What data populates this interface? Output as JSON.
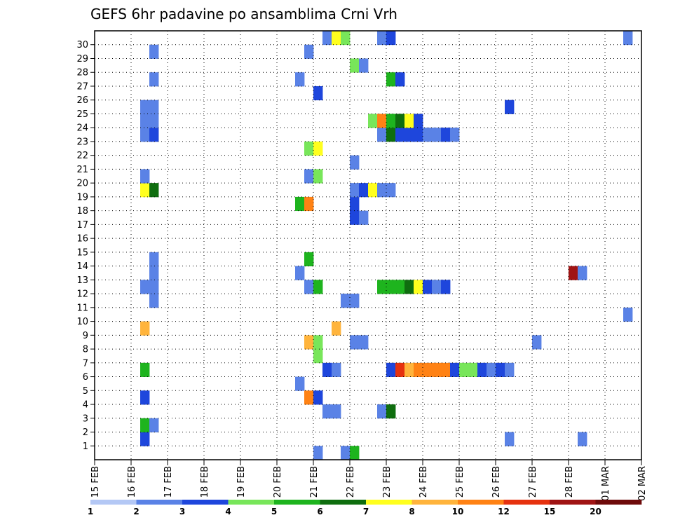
{
  "chart_data": {
    "type": "heatmap",
    "title": "GEFS 6hr padavine po ansamblima Crni Vrh",
    "x_tick_labels": [
      "15 FEB",
      "16 FEB",
      "17 FEB",
      "18 FEB",
      "19 FEB",
      "20 FEB",
      "21 FEB",
      "22 FEB",
      "23 FEB",
      "24 FEB",
      "25 FEB",
      "26 FEB",
      "27 FEB",
      "28 FEB",
      "01 MAR",
      "02 MAR"
    ],
    "y_tick_labels": [
      "1",
      "2",
      "3",
      "4",
      "5",
      "6",
      "7",
      "8",
      "9",
      "10",
      "11",
      "12",
      "13",
      "14",
      "15",
      "16",
      "17",
      "18",
      "19",
      "20",
      "21",
      "22",
      "23",
      "24",
      "25",
      "26",
      "27",
      "28",
      "29",
      "30"
    ],
    "x_step_hours": 6,
    "grid": true,
    "colorbar": {
      "levels": [
        "1",
        "2",
        "3",
        "4",
        "5",
        "6",
        "7",
        "8",
        "10",
        "12",
        "15",
        "20"
      ],
      "colors": [
        "#b4c8f5",
        "#5a82e6",
        "#1e46dc",
        "#78e65a",
        "#1eb41e",
        "#0f6e0f",
        "#ffff1e",
        "#ffb43c",
        "#ff8214",
        "#e6320f",
        "#a01414",
        "#6e0a0a"
      ],
      "placement": "bottom"
    },
    "cells": [
      {
        "d": "16 FEB",
        "h": 6,
        "m": 1,
        "c": 2
      },
      {
        "d": "16 FEB",
        "h": 6,
        "m": 2,
        "c": 4
      },
      {
        "d": "16 FEB",
        "h": 12,
        "m": 2,
        "c": 1
      },
      {
        "d": "16 FEB",
        "h": 6,
        "m": 4,
        "c": 2
      },
      {
        "d": "16 FEB",
        "h": 6,
        "m": 6,
        "c": 4
      },
      {
        "d": "16 FEB",
        "h": 6,
        "m": 9,
        "c": 7
      },
      {
        "d": "16 FEB",
        "h": 12,
        "m": 11,
        "c": 1
      },
      {
        "d": "16 FEB",
        "h": 6,
        "m": 12,
        "c": 1
      },
      {
        "d": "16 FEB",
        "h": 12,
        "m": 12,
        "c": 1
      },
      {
        "d": "16 FEB",
        "h": 12,
        "m": 13,
        "c": 1
      },
      {
        "d": "16 FEB",
        "h": 12,
        "m": 14,
        "c": 1
      },
      {
        "d": "16 FEB",
        "h": 6,
        "m": 19,
        "c": 6
      },
      {
        "d": "16 FEB",
        "h": 12,
        "m": 19,
        "c": 5
      },
      {
        "d": "16 FEB",
        "h": 6,
        "m": 20,
        "c": 1
      },
      {
        "d": "16 FEB",
        "h": 6,
        "m": 23,
        "c": 1
      },
      {
        "d": "16 FEB",
        "h": 12,
        "m": 23,
        "c": 2
      },
      {
        "d": "16 FEB",
        "h": 6,
        "m": 24,
        "c": 1
      },
      {
        "d": "16 FEB",
        "h": 12,
        "m": 24,
        "c": 1
      },
      {
        "d": "16 FEB",
        "h": 6,
        "m": 25,
        "c": 1
      },
      {
        "d": "16 FEB",
        "h": 12,
        "m": 25,
        "c": 1
      },
      {
        "d": "16 FEB",
        "h": 12,
        "m": 27,
        "c": 1
      },
      {
        "d": "16 FEB",
        "h": 12,
        "m": 29,
        "c": 1
      },
      {
        "d": "20 FEB",
        "h": 12,
        "m": 5,
        "c": 1
      },
      {
        "d": "20 FEB",
        "h": 12,
        "m": 13,
        "c": 1
      },
      {
        "d": "20 FEB",
        "h": 12,
        "m": 18,
        "c": 4
      },
      {
        "d": "20 FEB",
        "h": 12,
        "m": 27,
        "c": 1
      },
      {
        "d": "20 FEB",
        "h": 18,
        "m": 4,
        "c": 8
      },
      {
        "d": "20 FEB",
        "h": 18,
        "m": 8,
        "c": 7
      },
      {
        "d": "20 FEB",
        "h": 18,
        "m": 12,
        "c": 1
      },
      {
        "d": "20 FEB",
        "h": 18,
        "m": 14,
        "c": 4
      },
      {
        "d": "20 FEB",
        "h": 18,
        "m": 18,
        "c": 8
      },
      {
        "d": "20 FEB",
        "h": 18,
        "m": 20,
        "c": 1
      },
      {
        "d": "20 FEB",
        "h": 18,
        "m": 22,
        "c": 3
      },
      {
        "d": "20 FEB",
        "h": 18,
        "m": 29,
        "c": 1
      },
      {
        "d": "21 FEB",
        "h": 0,
        "m": 0,
        "c": 1
      },
      {
        "d": "21 FEB",
        "h": 0,
        "m": 4,
        "c": 2
      },
      {
        "d": "21 FEB",
        "h": 0,
        "m": 7,
        "c": 3
      },
      {
        "d": "21 FEB",
        "h": 0,
        "m": 8,
        "c": 3
      },
      {
        "d": "21 FEB",
        "h": 0,
        "m": 12,
        "c": 4
      },
      {
        "d": "21 FEB",
        "h": 0,
        "m": 20,
        "c": 3
      },
      {
        "d": "21 FEB",
        "h": 0,
        "m": 22,
        "c": 6
      },
      {
        "d": "21 FEB",
        "h": 0,
        "m": 26,
        "c": 2
      },
      {
        "d": "21 FEB",
        "h": 6,
        "m": 3,
        "c": 1
      },
      {
        "d": "21 FEB",
        "h": 6,
        "m": 6,
        "c": 2
      },
      {
        "d": "21 FEB",
        "h": 6,
        "m": 30,
        "c": 1
      },
      {
        "d": "21 FEB",
        "h": 12,
        "m": 3,
        "c": 1
      },
      {
        "d": "21 FEB",
        "h": 12,
        "m": 6,
        "c": 1
      },
      {
        "d": "21 FEB",
        "h": 12,
        "m": 30,
        "c": 6
      },
      {
        "d": "21 FEB",
        "h": 12,
        "m": 9,
        "c": 7
      },
      {
        "d": "21 FEB",
        "h": 18,
        "m": 30,
        "c": 3
      },
      {
        "d": "21 FEB",
        "h": 18,
        "m": 0,
        "c": 1
      },
      {
        "d": "21 FEB",
        "h": 18,
        "m": 11,
        "c": 1
      },
      {
        "d": "22 FEB",
        "h": 0,
        "m": 0,
        "c": 4
      },
      {
        "d": "22 FEB",
        "h": 0,
        "m": 8,
        "c": 1
      },
      {
        "d": "22 FEB",
        "h": 0,
        "m": 11,
        "c": 1
      },
      {
        "d": "22 FEB",
        "h": 0,
        "m": 17,
        "c": 2
      },
      {
        "d": "22 FEB",
        "h": 0,
        "m": 18,
        "c": 2
      },
      {
        "d": "22 FEB",
        "h": 0,
        "m": 19,
        "c": 1
      },
      {
        "d": "22 FEB",
        "h": 0,
        "m": 21,
        "c": 1
      },
      {
        "d": "22 FEB",
        "h": 0,
        "m": 28,
        "c": 3
      },
      {
        "d": "22 FEB",
        "h": 6,
        "m": 8,
        "c": 1
      },
      {
        "d": "22 FEB",
        "h": 6,
        "m": 17,
        "c": 1
      },
      {
        "d": "22 FEB",
        "h": 6,
        "m": 19,
        "c": 2
      },
      {
        "d": "22 FEB",
        "h": 6,
        "m": 28,
        "c": 1
      },
      {
        "d": "22 FEB",
        "h": 12,
        "m": 19,
        "c": 6
      },
      {
        "d": "22 FEB",
        "h": 12,
        "m": 24,
        "c": 3
      },
      {
        "d": "22 FEB",
        "h": 18,
        "m": 3,
        "c": 1
      },
      {
        "d": "22 FEB",
        "h": 18,
        "m": 12,
        "c": 4
      },
      {
        "d": "22 FEB",
        "h": 18,
        "m": 19,
        "c": 1
      },
      {
        "d": "22 FEB",
        "h": 18,
        "m": 23,
        "c": 1
      },
      {
        "d": "22 FEB",
        "h": 18,
        "m": 24,
        "c": 8
      },
      {
        "d": "22 FEB",
        "h": 18,
        "m": 30,
        "c": 1
      },
      {
        "d": "23 FEB",
        "h": 0,
        "m": 3,
        "c": 5
      },
      {
        "d": "23 FEB",
        "h": 0,
        "m": 6,
        "c": 2
      },
      {
        "d": "23 FEB",
        "h": 0,
        "m": 12,
        "c": 4
      },
      {
        "d": "23 FEB",
        "h": 0,
        "m": 19,
        "c": 1
      },
      {
        "d": "23 FEB",
        "h": 0,
        "m": 23,
        "c": 5
      },
      {
        "d": "23 FEB",
        "h": 0,
        "m": 24,
        "c": 4
      },
      {
        "d": "23 FEB",
        "h": 0,
        "m": 27,
        "c": 4
      },
      {
        "d": "23 FEB",
        "h": 0,
        "m": 30,
        "c": 2
      },
      {
        "d": "23 FEB",
        "h": 6,
        "m": 6,
        "c": 9
      },
      {
        "d": "23 FEB",
        "h": 6,
        "m": 12,
        "c": 4
      },
      {
        "d": "23 FEB",
        "h": 6,
        "m": 23,
        "c": 2
      },
      {
        "d": "23 FEB",
        "h": 6,
        "m": 24,
        "c": 5
      },
      {
        "d": "23 FEB",
        "h": 6,
        "m": 27,
        "c": 2
      },
      {
        "d": "23 FEB",
        "h": 12,
        "m": 6,
        "c": 7
      },
      {
        "d": "23 FEB",
        "h": 12,
        "m": 12,
        "c": 5
      },
      {
        "d": "23 FEB",
        "h": 12,
        "m": 23,
        "c": 2
      },
      {
        "d": "23 FEB",
        "h": 12,
        "m": 24,
        "c": 6
      },
      {
        "d": "23 FEB",
        "h": 18,
        "m": 6,
        "c": 8
      },
      {
        "d": "23 FEB",
        "h": 18,
        "m": 12,
        "c": 6
      },
      {
        "d": "23 FEB",
        "h": 18,
        "m": 23,
        "c": 2
      },
      {
        "d": "23 FEB",
        "h": 18,
        "m": 24,
        "c": 2
      },
      {
        "d": "24 FEB",
        "h": 0,
        "m": 6,
        "c": 8
      },
      {
        "d": "24 FEB",
        "h": 0,
        "m": 12,
        "c": 2
      },
      {
        "d": "24 FEB",
        "h": 0,
        "m": 23,
        "c": 1
      },
      {
        "d": "24 FEB",
        "h": 6,
        "m": 6,
        "c": 8
      },
      {
        "d": "24 FEB",
        "h": 6,
        "m": 12,
        "c": 1
      },
      {
        "d": "24 FEB",
        "h": 6,
        "m": 23,
        "c": 1
      },
      {
        "d": "24 FEB",
        "h": 12,
        "m": 6,
        "c": 8
      },
      {
        "d": "24 FEB",
        "h": 12,
        "m": 12,
        "c": 2
      },
      {
        "d": "24 FEB",
        "h": 12,
        "m": 23,
        "c": 2
      },
      {
        "d": "24 FEB",
        "h": 18,
        "m": 6,
        "c": 2
      },
      {
        "d": "24 FEB",
        "h": 18,
        "m": 23,
        "c": 1
      },
      {
        "d": "25 FEB",
        "h": 0,
        "m": 6,
        "c": 3
      },
      {
        "d": "25 FEB",
        "h": 6,
        "m": 6,
        "c": 3
      },
      {
        "d": "25 FEB",
        "h": 12,
        "m": 6,
        "c": 2
      },
      {
        "d": "25 FEB",
        "h": 18,
        "m": 6,
        "c": 1
      },
      {
        "d": "26 FEB",
        "h": 0,
        "m": 6,
        "c": 2
      },
      {
        "d": "26 FEB",
        "h": 6,
        "m": 6,
        "c": 1
      },
      {
        "d": "26 FEB",
        "h": 6,
        "m": 1,
        "c": 1
      },
      {
        "d": "26 FEB",
        "h": 6,
        "m": 25,
        "c": 2
      },
      {
        "d": "27 FEB",
        "h": 0,
        "m": 8,
        "c": 1
      },
      {
        "d": "28 FEB",
        "h": 0,
        "m": 13,
        "c": 10
      },
      {
        "d": "28 FEB",
        "h": 6,
        "m": 13,
        "c": 1
      },
      {
        "d": "28 FEB",
        "h": 6,
        "m": 1,
        "c": 1
      },
      {
        "d": "01 MAR",
        "h": 12,
        "m": 10,
        "c": 1
      },
      {
        "d": "01 MAR",
        "h": 12,
        "m": 30,
        "c": 1
      }
    ]
  }
}
